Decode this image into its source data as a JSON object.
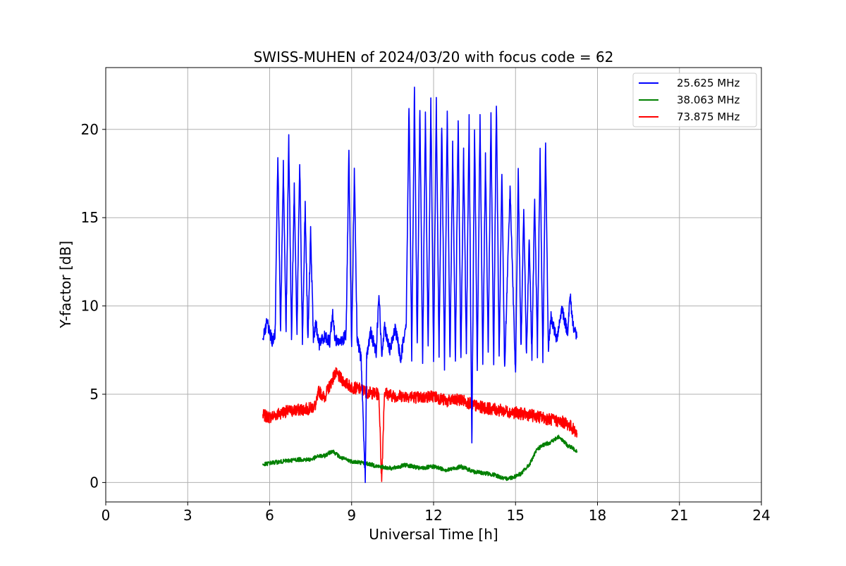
{
  "chart_data": {
    "type": "line",
    "title": "SWISS-MUHEN of 2024/03/20 with focus code = 62",
    "xlabel": "Universal Time [h]",
    "ylabel": "Y-factor [dB]",
    "xlim": [
      0,
      24
    ],
    "ylim": [
      -1.1,
      23.5
    ],
    "xticks": [
      0,
      3,
      6,
      9,
      12,
      15,
      18,
      21,
      24
    ],
    "yticks": [
      0,
      5,
      10,
      15,
      20
    ],
    "grid": true,
    "legend_position": "top-right",
    "series": [
      {
        "name": "25.625 MHz",
        "color": "#0000ff",
        "x": [
          5.75,
          5.9,
          6.1,
          6.2,
          6.3,
          6.4,
          6.5,
          6.6,
          6.7,
          6.8,
          6.9,
          7.0,
          7.1,
          7.2,
          7.3,
          7.4,
          7.5,
          7.6,
          7.7,
          7.8,
          8.0,
          8.2,
          8.3,
          8.4,
          8.6,
          8.8,
          8.9,
          9.0,
          9.1,
          9.2,
          9.35,
          9.5,
          9.55,
          9.7,
          9.9,
          10.0,
          10.1,
          10.2,
          10.4,
          10.6,
          10.8,
          11.0,
          11.1,
          11.2,
          11.3,
          11.4,
          11.5,
          11.6,
          11.7,
          11.8,
          11.9,
          12.0,
          12.1,
          12.2,
          12.3,
          12.4,
          12.5,
          12.6,
          12.7,
          12.8,
          12.9,
          13.0,
          13.1,
          13.2,
          13.3,
          13.4,
          13.5,
          13.6,
          13.7,
          13.8,
          13.9,
          14.0,
          14.1,
          14.2,
          14.3,
          14.4,
          14.5,
          14.6,
          14.8,
          15.0,
          15.1,
          15.2,
          15.3,
          15.4,
          15.5,
          15.6,
          15.7,
          15.8,
          15.9,
          16.0,
          16.1,
          16.2,
          16.3,
          16.5,
          16.7,
          16.9,
          17.0,
          17.1,
          17.25
        ],
        "values": [
          8.2,
          9.1,
          8.0,
          8.5,
          18.7,
          8.3,
          17.9,
          8.6,
          19.4,
          8.1,
          16.8,
          8.4,
          18.3,
          8.0,
          15.6,
          7.9,
          14.2,
          8.2,
          9.0,
          7.8,
          8.3,
          8.0,
          9.6,
          8.1,
          7.9,
          8.4,
          18.9,
          7.6,
          17.7,
          8.1,
          7.0,
          0.0,
          7.2,
          8.5,
          7.4,
          10.8,
          7.1,
          8.9,
          7.5,
          8.7,
          7.0,
          9.2,
          21.5,
          7.1,
          22.4,
          7.6,
          21.3,
          6.8,
          20.7,
          7.4,
          21.6,
          6.9,
          21.6,
          7.2,
          20.4,
          6.6,
          21.0,
          7.0,
          19.1,
          6.7,
          20.8,
          6.9,
          18.7,
          7.3,
          20.7,
          1.9,
          20.3,
          6.3,
          20.8,
          6.7,
          18.4,
          7.1,
          20.8,
          6.6,
          21.6,
          7.0,
          17.8,
          6.4,
          16.7,
          6.2,
          17.5,
          7.5,
          15.6,
          7.2,
          13.9,
          7.1,
          16.2,
          7.4,
          18.9,
          6.8,
          19.1,
          7.6,
          9.4,
          8.1,
          9.9,
          8.5,
          10.6,
          9.0,
          8.2
        ]
      },
      {
        "name": "38.063 MHz",
        "color": "#008000",
        "x": [
          5.75,
          6.0,
          6.5,
          7.0,
          7.5,
          7.8,
          8.0,
          8.3,
          8.6,
          9.0,
          9.5,
          10.0,
          10.5,
          11.0,
          11.5,
          12.0,
          12.5,
          13.0,
          13.5,
          14.0,
          14.3,
          14.6,
          14.9,
          15.2,
          15.5,
          15.8,
          16.0,
          16.3,
          16.6,
          16.9,
          17.25
        ],
        "values": [
          1.0,
          1.1,
          1.2,
          1.3,
          1.3,
          1.5,
          1.5,
          1.8,
          1.4,
          1.2,
          1.1,
          0.9,
          0.8,
          1.0,
          0.8,
          0.9,
          0.7,
          0.9,
          0.6,
          0.5,
          0.4,
          0.2,
          0.3,
          0.5,
          1.0,
          1.9,
          2.1,
          2.3,
          2.6,
          2.1,
          1.8
        ]
      },
      {
        "name": "73.875 MHz",
        "color": "#ff0000",
        "x": [
          5.75,
          6.0,
          6.5,
          7.0,
          7.5,
          7.7,
          7.8,
          8.0,
          8.2,
          8.4,
          8.6,
          8.8,
          9.0,
          9.3,
          9.6,
          10.0,
          10.1,
          10.2,
          10.5,
          11.0,
          11.5,
          12.0,
          12.5,
          13.0,
          13.3,
          13.6,
          14.0,
          14.4,
          14.8,
          15.2,
          15.6,
          15.9,
          16.2,
          16.5,
          16.8,
          17.0,
          17.25
        ],
        "values": [
          3.8,
          3.7,
          4.0,
          4.1,
          4.2,
          4.4,
          5.2,
          4.8,
          5.5,
          6.2,
          5.9,
          5.6,
          5.4,
          5.3,
          5.1,
          5.0,
          0.0,
          5.1,
          4.9,
          4.9,
          4.8,
          4.9,
          4.6,
          4.7,
          4.5,
          4.3,
          4.2,
          4.1,
          4.0,
          3.9,
          3.8,
          3.7,
          3.6,
          3.5,
          3.4,
          3.2,
          2.8
        ]
      }
    ]
  }
}
